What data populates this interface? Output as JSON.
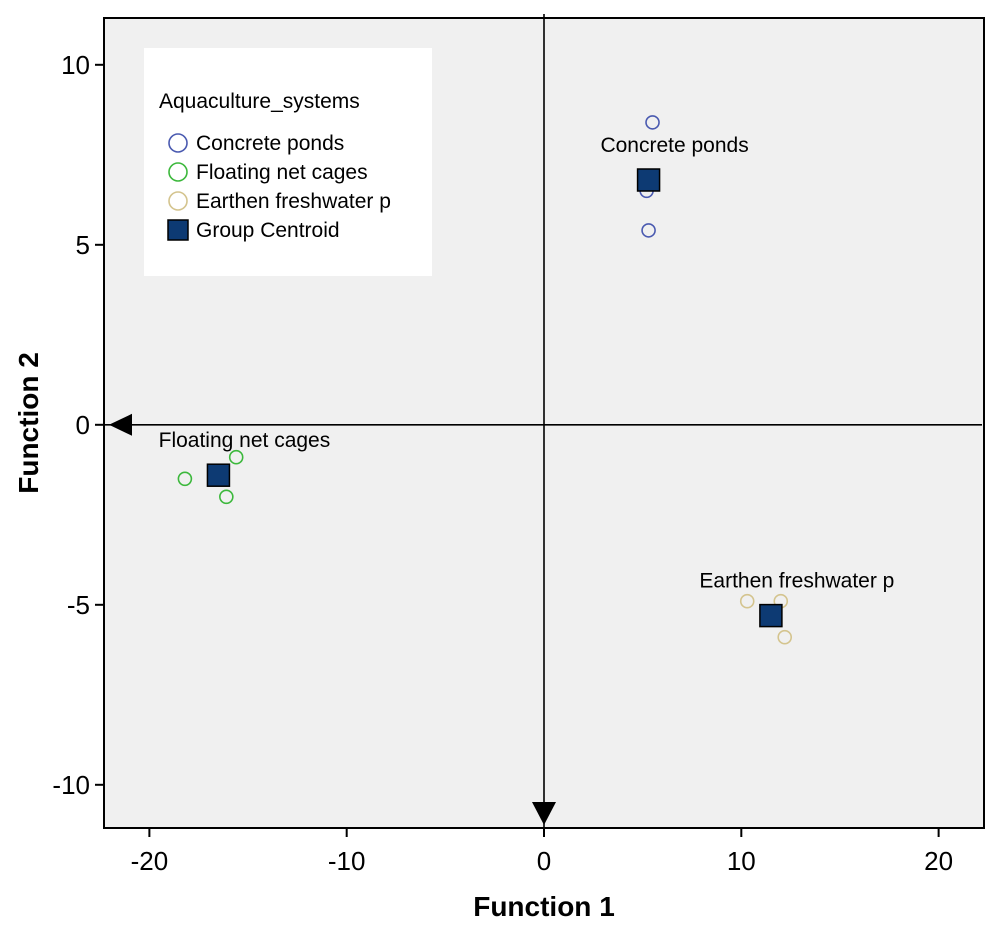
{
  "chart_data": {
    "type": "scatter",
    "xlabel": "Function 1",
    "ylabel": "Function 2",
    "xlim": [
      -22.3,
      22.3
    ],
    "ylim": [
      -11.2,
      11.3
    ],
    "xticks": [
      -20,
      -10,
      0,
      10,
      20
    ],
    "yticks": [
      10,
      5,
      0,
      -5,
      -10
    ],
    "grid": false,
    "legend": {
      "title": "Aquaculture_systems",
      "position": "top-left",
      "entries": [
        {
          "name": "Concrete ponds",
          "marker": "open-circle",
          "color": "#4a5ab0"
        },
        {
          "name": "Floating net cages",
          "marker": "open-circle",
          "color": "#3cb83c"
        },
        {
          "name": "Earthen freshwater p",
          "marker": "open-circle",
          "color": "#d4c48e"
        },
        {
          "name": "Group Centroid",
          "marker": "filled-square",
          "color": "#0d3a73"
        }
      ]
    },
    "series": [
      {
        "name": "Concrete ponds",
        "color": "#4a5ab0",
        "points": [
          [
            5.5,
            8.4
          ],
          [
            5.2,
            6.5
          ],
          [
            5.3,
            5.4
          ]
        ]
      },
      {
        "name": "Floating net cages",
        "color": "#3cb83c",
        "points": [
          [
            -18.2,
            -1.5
          ],
          [
            -15.6,
            -0.9
          ],
          [
            -16.1,
            -2.0
          ]
        ]
      },
      {
        "name": "Earthen freshwater p",
        "color": "#d4c48e",
        "points": [
          [
            10.3,
            -4.9
          ],
          [
            12.0,
            -4.9
          ],
          [
            12.2,
            -5.9
          ]
        ]
      }
    ],
    "centroids": [
      {
        "label": "Concrete ponds",
        "x": 5.3,
        "y": 6.8,
        "color": "#0d3a73"
      },
      {
        "label": "Floating net cages",
        "x": -16.5,
        "y": -1.4,
        "color": "#0d3a73"
      },
      {
        "label": "Earthen freshwater p",
        "x": 11.5,
        "y": -5.3,
        "color": "#0d3a73"
      }
    ],
    "reference_axes": {
      "x": 0,
      "y": 0
    }
  }
}
